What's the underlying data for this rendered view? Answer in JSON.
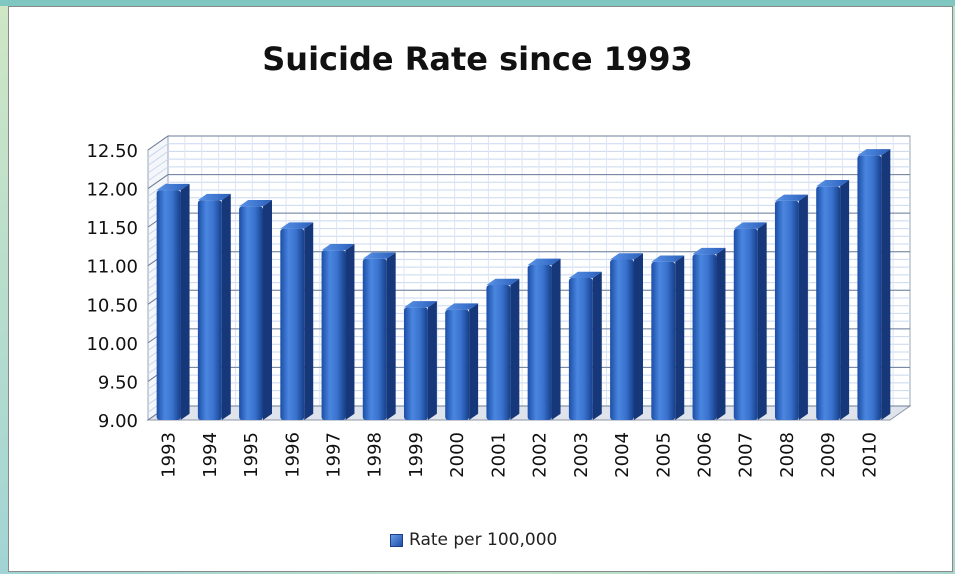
{
  "chart_data": {
    "type": "bar",
    "title": "Suicide Rate since 1993",
    "categories": [
      "1993",
      "1994",
      "1995",
      "1996",
      "1997",
      "1998",
      "1999",
      "2000",
      "2001",
      "2002",
      "2003",
      "2004",
      "2005",
      "2006",
      "2007",
      "2008",
      "2009",
      "2010"
    ],
    "series": [
      {
        "name": "Rate per 100,000",
        "values": [
          11.98,
          11.85,
          11.77,
          11.48,
          11.2,
          11.09,
          10.46,
          10.43,
          10.75,
          11.01,
          10.84,
          11.08,
          11.05,
          11.15,
          11.48,
          11.84,
          12.03,
          12.43
        ],
        "color": "#2b63c4"
      }
    ],
    "yticks": [
      "9.00",
      "9.50",
      "10.00",
      "10.50",
      "11.00",
      "11.50",
      "12.00",
      "12.50"
    ],
    "ylim": [
      9.0,
      12.5
    ],
    "grid": true,
    "legend_position": "bottom"
  }
}
